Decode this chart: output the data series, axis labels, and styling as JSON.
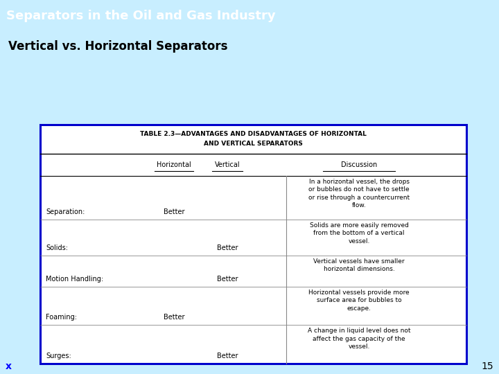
{
  "title": "Separators in the Oil and Gas Industry",
  "subtitle": "Vertical vs. Horizontal Separators",
  "title_bg": "#00AAFF",
  "title_color": "#FFFFFF",
  "subtitle_color": "#000000",
  "bg_color": "#C8EEFF",
  "page_num": "15",
  "page_x_label": "x",
  "table_title_line1": "TABLE 2.3—ADVANTAGES AND DISADVANTAGES OF HORIZONTAL",
  "table_title_line2": "AND VERTICAL SEPARATORS",
  "col_headers": [
    "Horizontal",
    "Vertical",
    "Discussion"
  ],
  "rows": [
    {
      "label": "Separation:",
      "horizontal": "Better",
      "vertical": "",
      "discussion": "In a horizontal vessel, the drops\nor bubbles do not have to settle\nor rise through a countercurrent\nflow."
    },
    {
      "label": "Solids:",
      "horizontal": "",
      "vertical": "Better",
      "discussion": "Solids are more easily removed\nfrom the bottom of a vertical\nvessel."
    },
    {
      "label": "Motion Handling:",
      "horizontal": "",
      "vertical": "Better",
      "discussion": "Vertical vessels have smaller\nhorizontal dimensions."
    },
    {
      "label": "Foaming:",
      "horizontal": "Better",
      "vertical": "",
      "discussion": "Horizontal vessels provide more\nsurface area for bubbles to\nescape."
    },
    {
      "label": "Surges:",
      "horizontal": "",
      "vertical": "Better",
      "discussion": "A change in liquid level does not\naffect the gas capacity of the\nvessel."
    }
  ],
  "table_border_color": "#0000CC",
  "table_bg": "#FFFFFF",
  "inner_line_color": "#888888"
}
